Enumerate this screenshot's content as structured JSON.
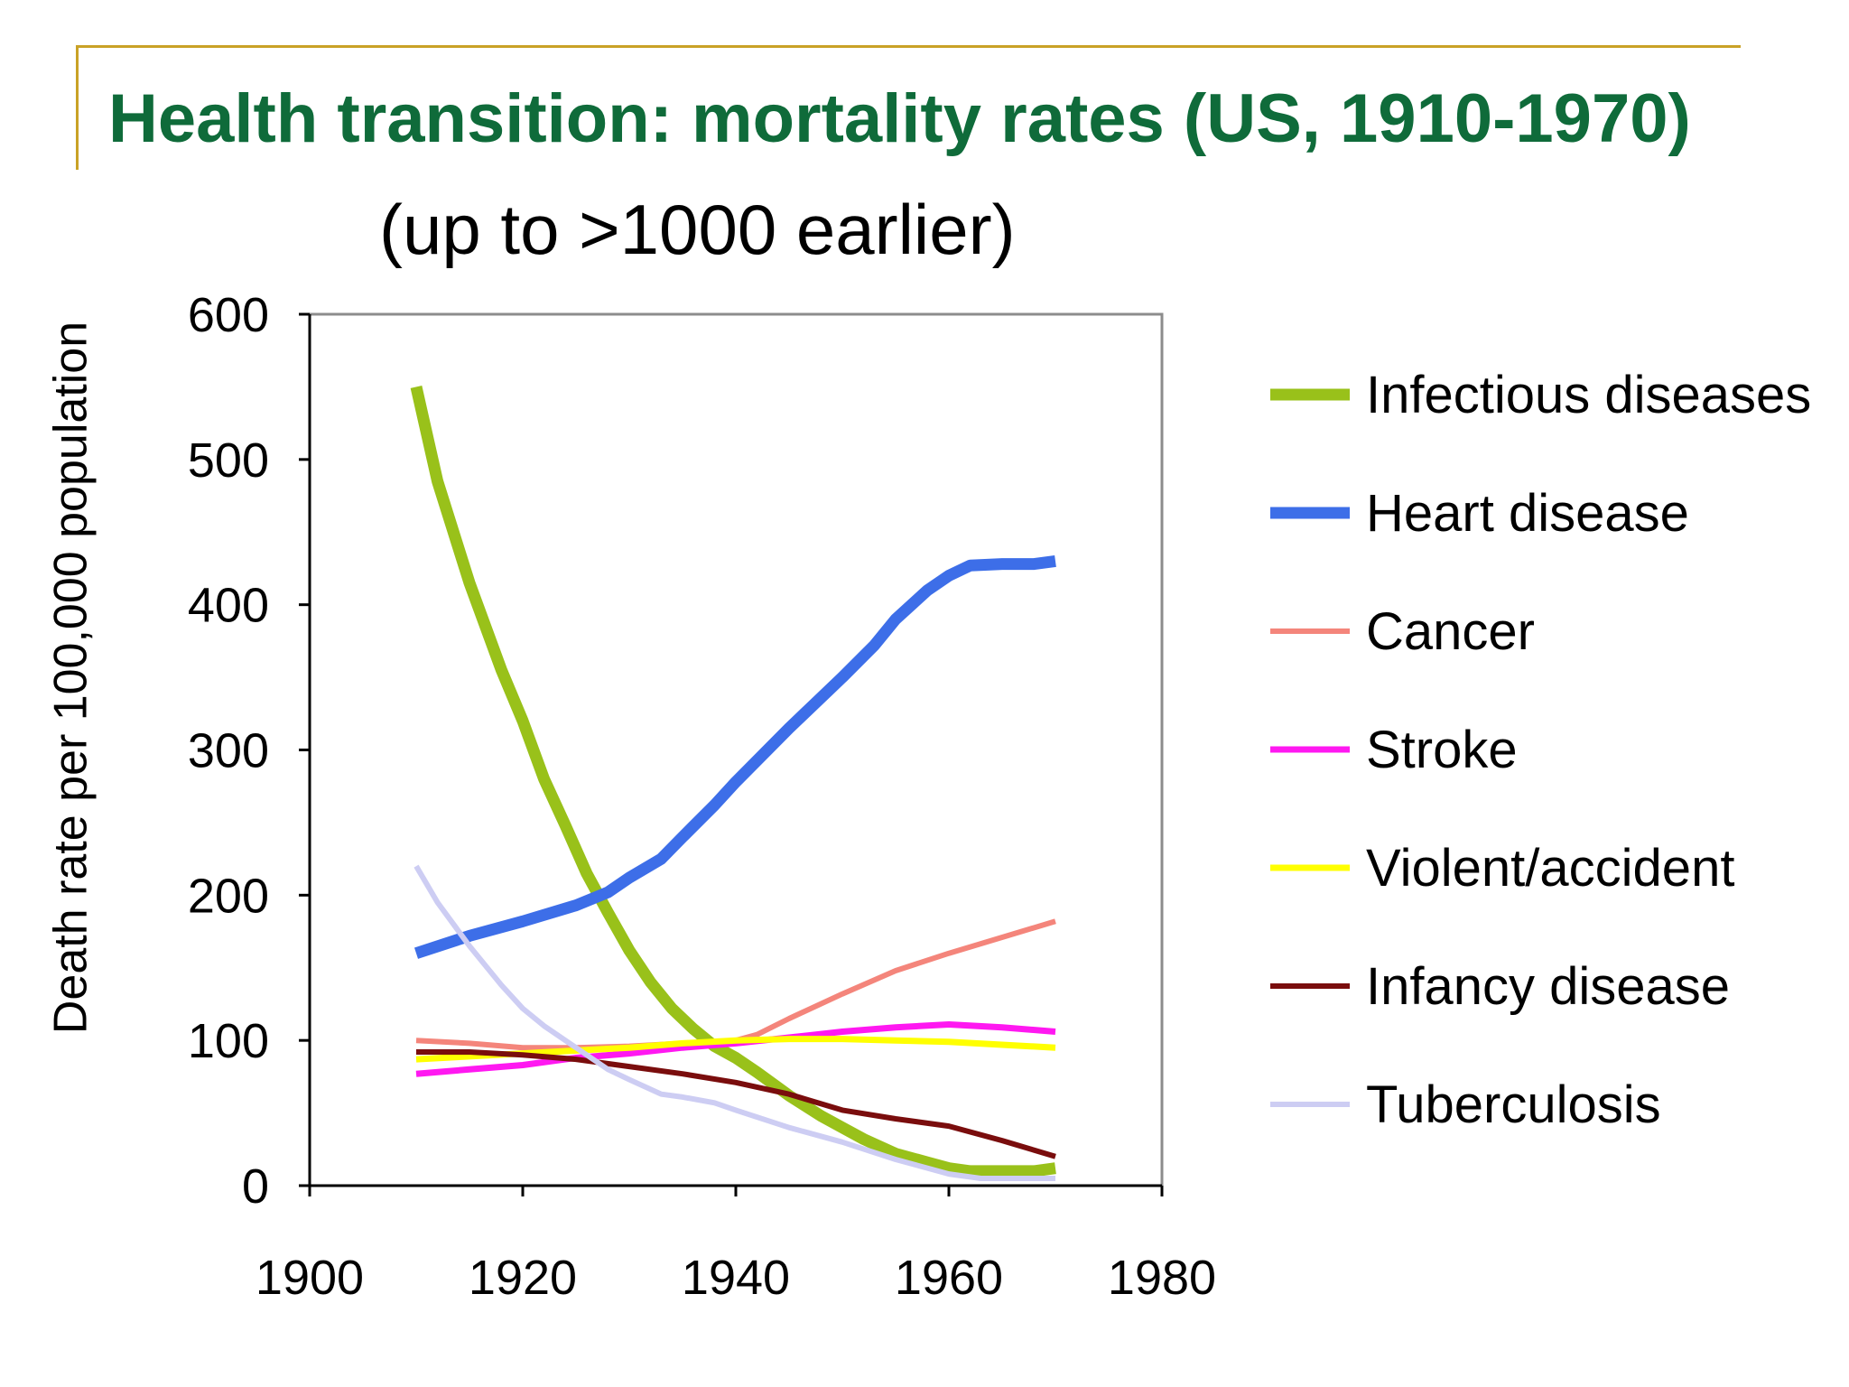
{
  "slide": {
    "title": "Health transition: mortality rates (US, 1910-1970)",
    "subtitle": "(up to >1000 earlier)"
  },
  "chart_data": {
    "type": "line",
    "title": "",
    "xlabel": "",
    "ylabel": "Death rate per 100,000 population",
    "xlim": [
      1900,
      1980
    ],
    "ylim": [
      0,
      600
    ],
    "xticks": [
      1900,
      1920,
      1940,
      1960,
      1980
    ],
    "yticks": [
      0,
      100,
      200,
      300,
      400,
      500,
      600
    ],
    "grid": false,
    "legend_position": "right",
    "series": [
      {
        "name": "Infectious diseases",
        "color": "#99c11a",
        "width": 13,
        "points": [
          [
            1910,
            550
          ],
          [
            1912,
            485
          ],
          [
            1915,
            415
          ],
          [
            1918,
            355
          ],
          [
            1920,
            320
          ],
          [
            1922,
            280
          ],
          [
            1924,
            248
          ],
          [
            1926,
            215
          ],
          [
            1928,
            188
          ],
          [
            1930,
            162
          ],
          [
            1932,
            140
          ],
          [
            1934,
            122
          ],
          [
            1936,
            108
          ],
          [
            1938,
            96
          ],
          [
            1940,
            88
          ],
          [
            1942,
            78
          ],
          [
            1945,
            62
          ],
          [
            1948,
            48
          ],
          [
            1950,
            40
          ],
          [
            1952,
            32
          ],
          [
            1955,
            22
          ],
          [
            1958,
            16
          ],
          [
            1960,
            12
          ],
          [
            1962,
            10
          ],
          [
            1965,
            10
          ],
          [
            1968,
            10
          ],
          [
            1970,
            12
          ]
        ]
      },
      {
        "name": "Heart disease",
        "color": "#3d6ee8",
        "width": 13,
        "points": [
          [
            1910,
            160
          ],
          [
            1915,
            172
          ],
          [
            1920,
            182
          ],
          [
            1925,
            193
          ],
          [
            1928,
            202
          ],
          [
            1930,
            212
          ],
          [
            1933,
            225
          ],
          [
            1935,
            240
          ],
          [
            1938,
            262
          ],
          [
            1940,
            278
          ],
          [
            1945,
            315
          ],
          [
            1950,
            350
          ],
          [
            1953,
            372
          ],
          [
            1955,
            390
          ],
          [
            1958,
            410
          ],
          [
            1960,
            420
          ],
          [
            1962,
            427
          ],
          [
            1965,
            428
          ],
          [
            1968,
            428
          ],
          [
            1970,
            430
          ]
        ]
      },
      {
        "name": "Cancer",
        "color": "#f4857b",
        "width": 6,
        "points": [
          [
            1910,
            100
          ],
          [
            1915,
            98
          ],
          [
            1920,
            95
          ],
          [
            1925,
            95
          ],
          [
            1930,
            96
          ],
          [
            1935,
            98
          ],
          [
            1940,
            100
          ],
          [
            1942,
            104
          ],
          [
            1945,
            115
          ],
          [
            1950,
            132
          ],
          [
            1955,
            148
          ],
          [
            1960,
            160
          ],
          [
            1965,
            171
          ],
          [
            1970,
            182
          ]
        ]
      },
      {
        "name": "Stroke",
        "color": "#ff18f1",
        "width": 7,
        "points": [
          [
            1910,
            77
          ],
          [
            1915,
            80
          ],
          [
            1920,
            83
          ],
          [
            1925,
            88
          ],
          [
            1930,
            91
          ],
          [
            1935,
            95
          ],
          [
            1940,
            98
          ],
          [
            1945,
            102
          ],
          [
            1950,
            106
          ],
          [
            1955,
            109
          ],
          [
            1960,
            111
          ],
          [
            1965,
            109
          ],
          [
            1970,
            106
          ]
        ]
      },
      {
        "name": "Violent/accident",
        "color": "#ffff00",
        "width": 7,
        "points": [
          [
            1910,
            87
          ],
          [
            1915,
            89
          ],
          [
            1920,
            91
          ],
          [
            1925,
            93
          ],
          [
            1930,
            95
          ],
          [
            1935,
            98
          ],
          [
            1940,
            100
          ],
          [
            1945,
            101
          ],
          [
            1950,
            101
          ],
          [
            1955,
            100
          ],
          [
            1960,
            99
          ],
          [
            1965,
            97
          ],
          [
            1970,
            95
          ]
        ]
      },
      {
        "name": "Infancy disease",
        "color": "#7a0d0d",
        "width": 6,
        "points": [
          [
            1910,
            92
          ],
          [
            1915,
            92
          ],
          [
            1920,
            90
          ],
          [
            1925,
            87
          ],
          [
            1930,
            82
          ],
          [
            1935,
            77
          ],
          [
            1940,
            71
          ],
          [
            1945,
            63
          ],
          [
            1950,
            52
          ],
          [
            1955,
            46
          ],
          [
            1960,
            41
          ],
          [
            1965,
            31
          ],
          [
            1970,
            20
          ]
        ]
      },
      {
        "name": "Tuberculosis",
        "color": "#cdcdf3",
        "width": 6,
        "points": [
          [
            1910,
            220
          ],
          [
            1912,
            195
          ],
          [
            1915,
            165
          ],
          [
            1918,
            138
          ],
          [
            1920,
            122
          ],
          [
            1922,
            110
          ],
          [
            1925,
            95
          ],
          [
            1928,
            80
          ],
          [
            1930,
            73
          ],
          [
            1933,
            63
          ],
          [
            1935,
            61
          ],
          [
            1938,
            57
          ],
          [
            1940,
            52
          ],
          [
            1945,
            40
          ],
          [
            1950,
            30
          ],
          [
            1955,
            18
          ],
          [
            1960,
            8
          ],
          [
            1963,
            5
          ],
          [
            1965,
            5
          ],
          [
            1970,
            5
          ]
        ]
      }
    ]
  }
}
